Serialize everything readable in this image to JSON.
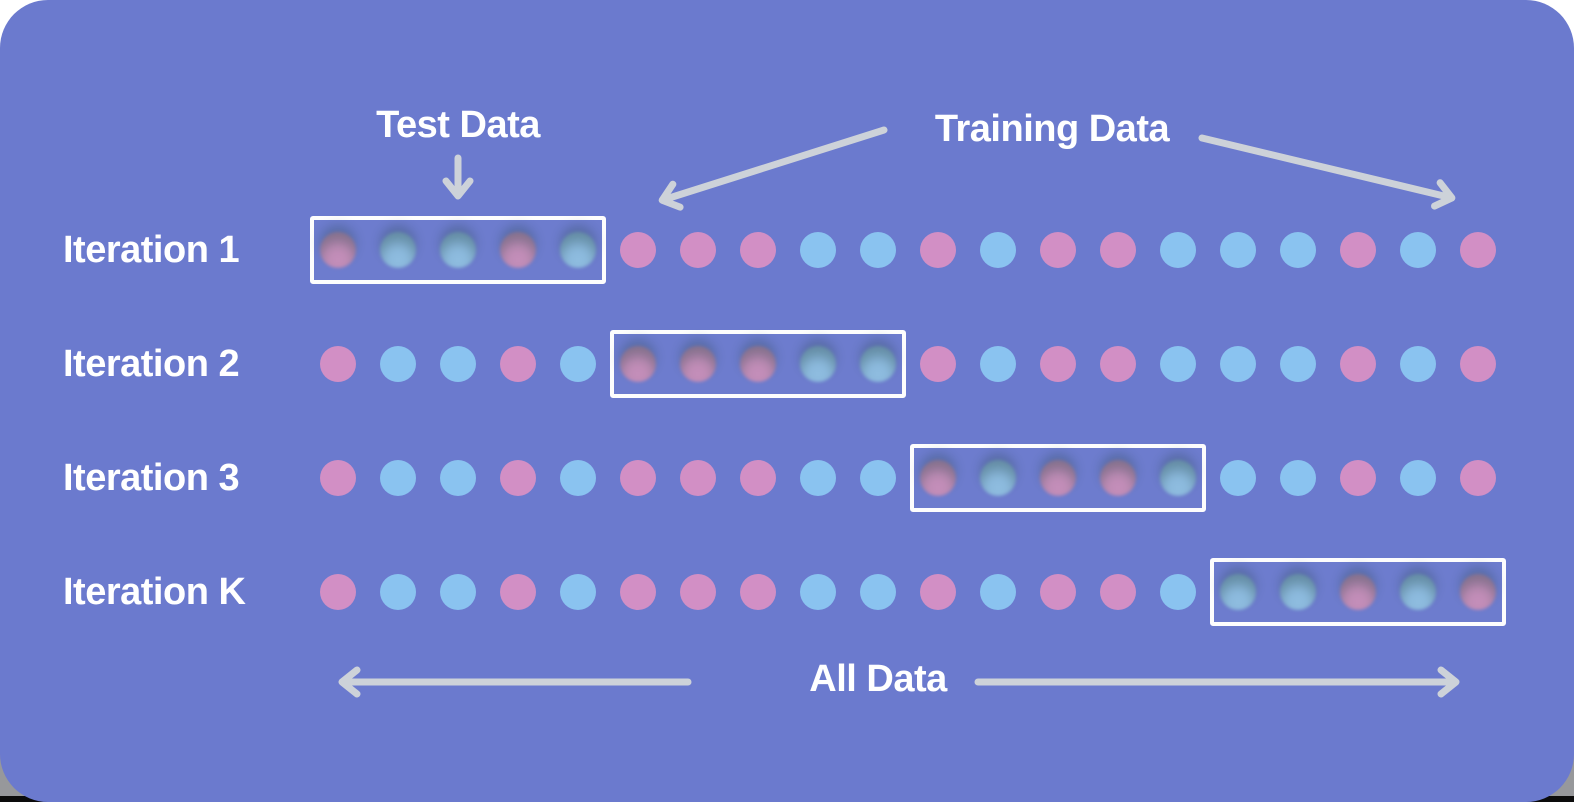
{
  "colors": {
    "background": "#6b7ace",
    "pink": "#d28fc5",
    "blue": "#8ac3f0",
    "arrow": "#cdd2d9",
    "box_border": "#fdfdfd",
    "text": "#ffffff"
  },
  "headings": {
    "test_data": "Test Data",
    "training_data": "Training Data",
    "all_data": "All Data"
  },
  "dots_per_row": 20,
  "fold_size": 5,
  "dot_sequence": [
    "pink",
    "blue",
    "blue",
    "pink",
    "blue",
    "pink",
    "pink",
    "pink",
    "blue",
    "blue",
    "pink",
    "blue",
    "pink",
    "pink",
    "blue",
    "blue",
    "blue",
    "pink",
    "blue",
    "pink"
  ],
  "rows": [
    {
      "label": "Iteration 1",
      "test_fold_start": 0,
      "test_fold_end": 4
    },
    {
      "label": "Iteration 2",
      "test_fold_start": 5,
      "test_fold_end": 9
    },
    {
      "label": "Iteration 3",
      "test_fold_start": 10,
      "test_fold_end": 14
    },
    {
      "label": "Iteration K",
      "test_fold_start": 15,
      "test_fold_end": 19
    }
  ]
}
